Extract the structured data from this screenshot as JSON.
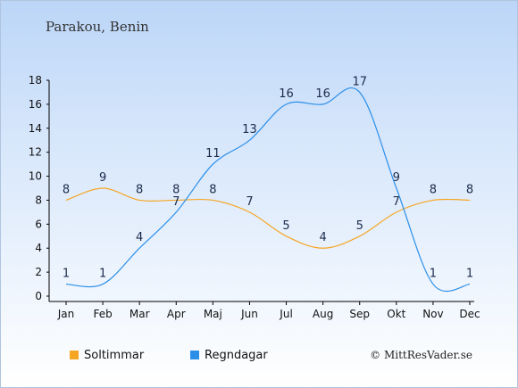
{
  "header": {
    "location": "Parakou, Benin"
  },
  "footer": {
    "credit": "© MittResVader.se"
  },
  "colors": {
    "sun": "#f5a623",
    "rain": "#2b8fe8",
    "axis": "#000000",
    "label": "#1b2a4a"
  },
  "chart_data": {
    "type": "line",
    "categories": [
      "Jan",
      "Feb",
      "Mar",
      "Apr",
      "Maj",
      "Jun",
      "Jul",
      "Aug",
      "Sep",
      "Okt",
      "Nov",
      "Dec"
    ],
    "ylim": [
      0,
      18
    ],
    "yticks": [
      0,
      2,
      4,
      6,
      8,
      10,
      12,
      14,
      16,
      18
    ],
    "grid": false,
    "legend_position": "bottom-left",
    "series": [
      {
        "name": "Soltimmar",
        "color": "#f5a623",
        "values": [
          8,
          9,
          8,
          8,
          8,
          7,
          5,
          4,
          5,
          7,
          8,
          8
        ]
      },
      {
        "name": "Regndagar",
        "color": "#2b8fe8",
        "values": [
          1,
          1,
          4,
          7,
          11,
          13,
          16,
          16,
          17,
          9,
          1,
          1
        ]
      }
    ]
  }
}
